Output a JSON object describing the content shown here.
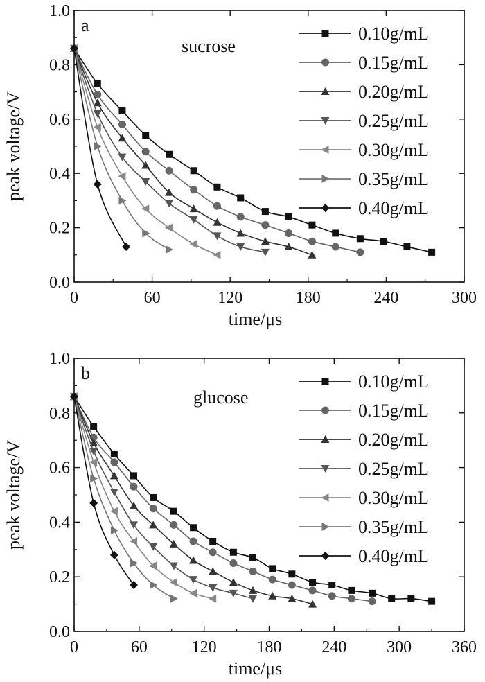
{
  "chart_data": [
    {
      "type": "line",
      "panel_label": "a",
      "sample": "sucrose",
      "xlabel": "time/μs",
      "ylabel": "peak voltage/V",
      "xlim": [
        0,
        300
      ],
      "ylim": [
        0.0,
        1.0
      ],
      "xticks": [
        "0",
        "60",
        "120",
        "180",
        "240",
        "300"
      ],
      "yticks": [
        "0.0",
        "0.2",
        "0.4",
        "0.6",
        "0.8",
        "1.0"
      ],
      "legend_position": "top-right",
      "grid": false,
      "series": [
        {
          "name": "0.10g/mL",
          "marker": "square",
          "color": "#111111",
          "x": [
            0,
            18,
            37,
            55,
            73,
            92,
            110,
            128,
            147,
            165,
            183,
            201,
            220,
            238,
            256,
            275
          ],
          "y": [
            0.86,
            0.73,
            0.63,
            0.54,
            0.47,
            0.41,
            0.35,
            0.31,
            0.26,
            0.24,
            0.21,
            0.18,
            0.16,
            0.15,
            0.13,
            0.11
          ]
        },
        {
          "name": "0.15g/mL",
          "marker": "circle",
          "color": "#666666",
          "x": [
            0,
            18,
            37,
            55,
            73,
            92,
            110,
            128,
            147,
            165,
            183,
            201,
            220
          ],
          "y": [
            0.86,
            0.69,
            0.58,
            0.48,
            0.41,
            0.34,
            0.28,
            0.24,
            0.21,
            0.18,
            0.15,
            0.13,
            0.11
          ]
        },
        {
          "name": "0.20g/mL",
          "marker": "triangle-up",
          "color": "#333333",
          "x": [
            0,
            18,
            37,
            55,
            73,
            92,
            110,
            128,
            147,
            165,
            183
          ],
          "y": [
            0.86,
            0.66,
            0.53,
            0.43,
            0.33,
            0.27,
            0.22,
            0.18,
            0.15,
            0.13,
            0.1
          ]
        },
        {
          "name": "0.25g/mL",
          "marker": "triangle-down",
          "color": "#555555",
          "x": [
            0,
            18,
            37,
            55,
            73,
            92,
            110,
            128,
            147
          ],
          "y": [
            0.86,
            0.62,
            0.46,
            0.37,
            0.29,
            0.23,
            0.17,
            0.13,
            0.11
          ]
        },
        {
          "name": "0.30g/mL",
          "marker": "triangle-left",
          "color": "#888888",
          "x": [
            0,
            18,
            37,
            55,
            73,
            92,
            110
          ],
          "y": [
            0.86,
            0.57,
            0.39,
            0.27,
            0.2,
            0.14,
            0.1
          ]
        },
        {
          "name": "0.35g/mL",
          "marker": "triangle-right",
          "color": "#777777",
          "x": [
            0,
            18,
            37,
            55,
            73
          ],
          "y": [
            0.86,
            0.5,
            0.3,
            0.18,
            0.12
          ]
        },
        {
          "name": "0.40g/mL",
          "marker": "diamond",
          "color": "#111111",
          "x": [
            0,
            18,
            40
          ],
          "y": [
            0.86,
            0.36,
            0.13
          ]
        }
      ]
    },
    {
      "type": "line",
      "panel_label": "b",
      "sample": "glucose",
      "xlabel": "time/μs",
      "ylabel": "peak voltage/V",
      "xlim": [
        0,
        360
      ],
      "ylim": [
        0.0,
        1.0
      ],
      "xticks": [
        "0",
        "60",
        "120",
        "180",
        "240",
        "300",
        "360"
      ],
      "yticks": [
        "0.0",
        "0.2",
        "0.4",
        "0.6",
        "0.8",
        "1.0"
      ],
      "legend_position": "top-right",
      "grid": false,
      "series": [
        {
          "name": "0.10g/mL",
          "marker": "square",
          "color": "#111111",
          "x": [
            0,
            18,
            37,
            55,
            73,
            92,
            110,
            128,
            147,
            165,
            183,
            201,
            220,
            238,
            256,
            275,
            293,
            311,
            330
          ],
          "y": [
            0.86,
            0.75,
            0.65,
            0.57,
            0.49,
            0.44,
            0.38,
            0.33,
            0.29,
            0.27,
            0.23,
            0.21,
            0.18,
            0.17,
            0.15,
            0.14,
            0.12,
            0.12,
            0.11
          ]
        },
        {
          "name": "0.15g/mL",
          "marker": "circle",
          "color": "#666666",
          "x": [
            0,
            18,
            37,
            55,
            73,
            92,
            110,
            128,
            147,
            165,
            183,
            201,
            220,
            238,
            256,
            275
          ],
          "y": [
            0.86,
            0.71,
            0.62,
            0.53,
            0.45,
            0.39,
            0.33,
            0.29,
            0.25,
            0.22,
            0.19,
            0.17,
            0.15,
            0.13,
            0.12,
            0.11
          ]
        },
        {
          "name": "0.20g/mL",
          "marker": "triangle-up",
          "color": "#333333",
          "x": [
            0,
            18,
            37,
            55,
            73,
            92,
            110,
            128,
            147,
            165,
            183,
            201,
            220
          ],
          "y": [
            0.86,
            0.69,
            0.57,
            0.46,
            0.39,
            0.32,
            0.26,
            0.22,
            0.18,
            0.15,
            0.13,
            0.12,
            0.1
          ]
        },
        {
          "name": "0.25g/mL",
          "marker": "triangle-down",
          "color": "#555555",
          "x": [
            0,
            18,
            37,
            55,
            73,
            92,
            110,
            128,
            147,
            165
          ],
          "y": [
            0.86,
            0.66,
            0.51,
            0.39,
            0.31,
            0.24,
            0.19,
            0.16,
            0.14,
            0.12
          ]
        },
        {
          "name": "0.30g/mL",
          "marker": "triangle-left",
          "color": "#888888",
          "x": [
            0,
            18,
            37,
            55,
            73,
            92,
            110,
            128
          ],
          "y": [
            0.86,
            0.62,
            0.44,
            0.33,
            0.24,
            0.18,
            0.14,
            0.12
          ]
        },
        {
          "name": "0.35g/mL",
          "marker": "triangle-right",
          "color": "#777777",
          "x": [
            0,
            18,
            37,
            55,
            73,
            92
          ],
          "y": [
            0.86,
            0.56,
            0.37,
            0.25,
            0.17,
            0.12
          ]
        },
        {
          "name": "0.40g/mL",
          "marker": "diamond",
          "color": "#111111",
          "x": [
            0,
            18,
            37,
            55
          ],
          "y": [
            0.86,
            0.47,
            0.28,
            0.17
          ]
        }
      ]
    }
  ]
}
